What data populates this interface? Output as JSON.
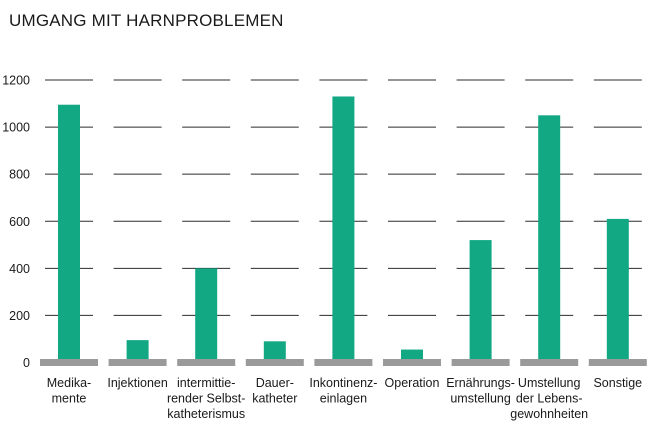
{
  "chart_data": {
    "type": "bar",
    "title": "UMGANG MIT HARNPROBLEMEN",
    "xlabel": "",
    "ylabel": "",
    "ylim": [
      0,
      1200
    ],
    "yticks": [
      0,
      200,
      400,
      600,
      800,
      1000,
      1200
    ],
    "grid": "dashed-per-category",
    "legend": "none",
    "categories": [
      [
        "Medika-",
        "mente"
      ],
      [
        "Injektionen"
      ],
      [
        "intermittie-",
        "render Selbst-",
        "katheterismus"
      ],
      [
        "Dauer-",
        "katheter"
      ],
      [
        "Inkontinenz-",
        "einlagen"
      ],
      [
        "Operation"
      ],
      [
        "Ernährungs-",
        "umstellung"
      ],
      [
        "Umstellung",
        "der Lebens-",
        "gewohnheiten"
      ],
      [
        "Sonstige"
      ]
    ],
    "values": [
      1095,
      95,
      400,
      90,
      1130,
      55,
      520,
      1050,
      610
    ],
    "colors": {
      "bar": "#12a884",
      "baseline": "#9a9a9a",
      "grid": "#2b2b2b"
    }
  }
}
